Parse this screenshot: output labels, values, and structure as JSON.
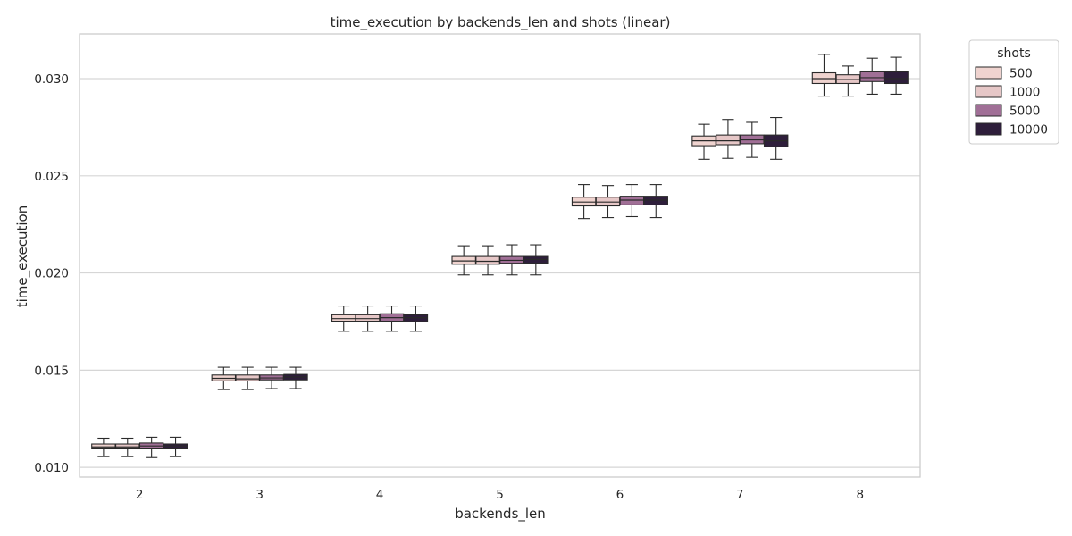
{
  "chart_data": {
    "type": "box",
    "title": "time_execution by backends_len and shots (linear)",
    "xlabel": "backends_len",
    "ylabel": "time_execution",
    "categories": [
      "2",
      "3",
      "4",
      "5",
      "6",
      "7",
      "8"
    ],
    "ylim": [
      0.0095,
      0.0323
    ],
    "yticks": [
      0.01,
      0.015,
      0.02,
      0.025,
      0.03
    ],
    "ytick_labels": [
      "0.010",
      "0.015",
      "0.020",
      "0.025",
      "0.030"
    ],
    "grid": "horizontal",
    "legend": {
      "title": "shots",
      "placement": "outside-right"
    },
    "series": [
      {
        "name": "500",
        "color": "#efd3cf",
        "boxes": [
          {
            "min": 0.01055,
            "q1": 0.01095,
            "median": 0.01105,
            "q3": 0.0112,
            "max": 0.0115
          },
          {
            "min": 0.014,
            "q1": 0.01445,
            "median": 0.01458,
            "q3": 0.01475,
            "max": 0.01515
          },
          {
            "min": 0.017,
            "q1": 0.01752,
            "median": 0.01765,
            "q3": 0.01785,
            "max": 0.0183
          },
          {
            "min": 0.0199,
            "q1": 0.02045,
            "median": 0.02062,
            "q3": 0.02085,
            "max": 0.0214
          },
          {
            "min": 0.0228,
            "q1": 0.02345,
            "median": 0.02365,
            "q3": 0.0239,
            "max": 0.02455
          },
          {
            "min": 0.02585,
            "q1": 0.02655,
            "median": 0.0268,
            "q3": 0.02705,
            "max": 0.02765
          },
          {
            "min": 0.0291,
            "q1": 0.02975,
            "median": 0.03,
            "q3": 0.0303,
            "max": 0.03125
          }
        ]
      },
      {
        "name": "1000",
        "color": "#e6c7c7",
        "boxes": [
          {
            "min": 0.01055,
            "q1": 0.01095,
            "median": 0.01105,
            "q3": 0.0112,
            "max": 0.0115
          },
          {
            "min": 0.014,
            "q1": 0.01445,
            "median": 0.01455,
            "q3": 0.01475,
            "max": 0.01515
          },
          {
            "min": 0.017,
            "q1": 0.01752,
            "median": 0.01765,
            "q3": 0.01785,
            "max": 0.0183
          },
          {
            "min": 0.0199,
            "q1": 0.02045,
            "median": 0.0206,
            "q3": 0.02085,
            "max": 0.0214
          },
          {
            "min": 0.02285,
            "q1": 0.02345,
            "median": 0.02365,
            "q3": 0.0239,
            "max": 0.0245
          },
          {
            "min": 0.0259,
            "q1": 0.0266,
            "median": 0.0268,
            "q3": 0.0271,
            "max": 0.0279
          },
          {
            "min": 0.0291,
            "q1": 0.02975,
            "median": 0.02995,
            "q3": 0.0302,
            "max": 0.03065
          }
        ]
      },
      {
        "name": "5000",
        "color": "#a06f96",
        "boxes": [
          {
            "min": 0.0105,
            "q1": 0.01095,
            "median": 0.0111,
            "q3": 0.01125,
            "max": 0.01155
          },
          {
            "min": 0.01405,
            "q1": 0.0145,
            "median": 0.0146,
            "q3": 0.01475,
            "max": 0.01515
          },
          {
            "min": 0.017,
            "q1": 0.01752,
            "median": 0.0177,
            "q3": 0.0179,
            "max": 0.0183
          },
          {
            "min": 0.0199,
            "q1": 0.0205,
            "median": 0.02065,
            "q3": 0.02085,
            "max": 0.02145
          },
          {
            "min": 0.0229,
            "q1": 0.0235,
            "median": 0.02375,
            "q3": 0.02395,
            "max": 0.02455
          },
          {
            "min": 0.02595,
            "q1": 0.02665,
            "median": 0.02685,
            "q3": 0.0271,
            "max": 0.02775
          },
          {
            "min": 0.0292,
            "q1": 0.02985,
            "median": 0.03005,
            "q3": 0.03035,
            "max": 0.03105
          }
        ]
      },
      {
        "name": "10000",
        "color": "#2e1e3b",
        "boxes": [
          {
            "min": 0.01055,
            "q1": 0.01095,
            "median": 0.0111,
            "q3": 0.0112,
            "max": 0.01155
          },
          {
            "min": 0.01405,
            "q1": 0.0145,
            "median": 0.01465,
            "q3": 0.01478,
            "max": 0.01515
          },
          {
            "min": 0.017,
            "q1": 0.0175,
            "median": 0.0177,
            "q3": 0.01785,
            "max": 0.0183
          },
          {
            "min": 0.0199,
            "q1": 0.0205,
            "median": 0.0207,
            "q3": 0.02085,
            "max": 0.02145
          },
          {
            "min": 0.02285,
            "q1": 0.0235,
            "median": 0.02375,
            "q3": 0.02395,
            "max": 0.02455
          },
          {
            "min": 0.02585,
            "q1": 0.0265,
            "median": 0.0268,
            "q3": 0.0271,
            "max": 0.028
          },
          {
            "min": 0.0292,
            "q1": 0.02975,
            "median": 0.03,
            "q3": 0.03035,
            "max": 0.0311
          }
        ]
      }
    ]
  }
}
